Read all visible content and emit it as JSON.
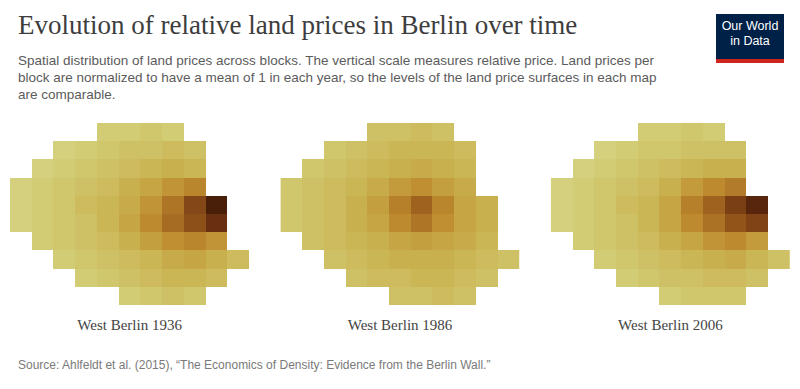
{
  "title": "Evolution of relative land prices in Berlin over time",
  "subtitle": "Spatial distribution of land prices across blocks. The vertical scale measures relative price. Land prices per block are normalized to have a mean of 1 in each year, so the levels of the land price surfaces in each map are comparable.",
  "logo": [
    "Our World",
    "in Data"
  ],
  "source": "Source: Ahlfeldt et al. (2015), “The Economics of Density: Evidence from the Berlin Wall.”",
  "chart_data": [
    {
      "type": "heatmap",
      "title": "West Berlin 1936",
      "tick_labels": false,
      "zlim": [
        0,
        5
      ],
      "cells": [
        [
          null,
          null,
          null,
          null,
          0.6,
          0.6,
          0.7,
          0.6,
          null,
          null,
          null
        ],
        [
          null,
          null,
          0.5,
          0.6,
          0.7,
          0.8,
          0.8,
          0.9,
          0.8,
          null,
          null
        ],
        [
          null,
          0.5,
          0.6,
          0.7,
          0.8,
          0.9,
          1.0,
          1.1,
          1.0,
          null,
          null
        ],
        [
          0.5,
          0.6,
          0.7,
          0.8,
          0.9,
          1.1,
          1.3,
          1.6,
          1.9,
          null,
          null
        ],
        [
          0.5,
          0.6,
          0.7,
          0.9,
          1.0,
          1.2,
          1.6,
          2.2,
          3.2,
          4.5,
          null
        ],
        [
          0.5,
          0.6,
          0.7,
          0.8,
          1.0,
          1.3,
          1.8,
          2.4,
          3.0,
          3.8,
          null
        ],
        [
          null,
          0.6,
          0.7,
          0.8,
          0.9,
          1.1,
          1.4,
          1.7,
          1.9,
          1.6,
          null
        ],
        [
          null,
          null,
          0.6,
          0.7,
          0.8,
          0.9,
          1.0,
          1.2,
          1.3,
          1.1,
          0.9
        ],
        [
          null,
          null,
          null,
          0.6,
          0.7,
          0.8,
          0.9,
          1.0,
          1.0,
          0.9,
          null
        ],
        [
          null,
          null,
          null,
          null,
          null,
          0.6,
          0.7,
          0.8,
          0.7,
          null,
          null
        ]
      ]
    },
    {
      "type": "heatmap",
      "title": "West Berlin 1986",
      "tick_labels": false,
      "zlim": [
        0,
        5
      ],
      "cells": [
        [
          null,
          null,
          null,
          null,
          0.8,
          0.8,
          0.9,
          0.8,
          null,
          null,
          null
        ],
        [
          null,
          null,
          0.7,
          0.8,
          0.9,
          1.0,
          1.0,
          1.0,
          0.9,
          null,
          null
        ],
        [
          null,
          0.7,
          0.8,
          0.9,
          1.0,
          1.1,
          1.2,
          1.1,
          1.0,
          null,
          null
        ],
        [
          0.7,
          0.8,
          0.9,
          1.0,
          1.2,
          1.5,
          1.7,
          1.4,
          1.2,
          null,
          null
        ],
        [
          0.7,
          0.8,
          0.9,
          1.1,
          1.4,
          2.0,
          2.6,
          1.9,
          1.3,
          1.1,
          null
        ],
        [
          0.7,
          0.8,
          0.9,
          1.1,
          1.3,
          1.8,
          2.2,
          1.7,
          1.3,
          1.1,
          null
        ],
        [
          null,
          0.8,
          0.9,
          1.0,
          1.1,
          1.3,
          1.4,
          1.3,
          1.2,
          1.0,
          null
        ],
        [
          null,
          null,
          0.8,
          0.9,
          1.0,
          1.1,
          1.1,
          1.1,
          1.0,
          0.9,
          0.8
        ],
        [
          null,
          null,
          null,
          0.8,
          0.9,
          0.9,
          1.0,
          1.0,
          0.9,
          0.8,
          null
        ],
        [
          null,
          null,
          null,
          null,
          null,
          0.8,
          0.8,
          0.9,
          0.8,
          null,
          null
        ]
      ]
    },
    {
      "type": "heatmap",
      "title": "West Berlin 2006",
      "tick_labels": false,
      "zlim": [
        0,
        5
      ],
      "cells": [
        [
          null,
          null,
          null,
          null,
          0.6,
          0.6,
          0.7,
          0.6,
          null,
          null,
          null
        ],
        [
          null,
          null,
          0.5,
          0.6,
          0.7,
          0.7,
          0.8,
          0.8,
          0.8,
          null,
          null
        ],
        [
          null,
          0.5,
          0.6,
          0.7,
          0.8,
          0.9,
          1.0,
          1.1,
          1.1,
          null,
          null
        ],
        [
          0.5,
          0.6,
          0.7,
          0.8,
          0.9,
          1.1,
          1.5,
          1.8,
          2.1,
          null,
          null
        ],
        [
          0.5,
          0.6,
          0.7,
          0.9,
          1.0,
          1.3,
          2.0,
          2.6,
          3.4,
          4.2,
          null
        ],
        [
          0.5,
          0.6,
          0.7,
          0.8,
          1.0,
          1.3,
          1.8,
          2.3,
          2.9,
          3.3,
          null
        ],
        [
          null,
          0.6,
          0.7,
          0.8,
          0.9,
          1.1,
          1.3,
          1.6,
          1.8,
          1.5,
          null
        ],
        [
          null,
          null,
          0.6,
          0.7,
          0.8,
          0.9,
          1.0,
          1.1,
          1.2,
          1.0,
          0.8
        ],
        [
          null,
          null,
          null,
          0.6,
          0.7,
          0.8,
          0.8,
          0.9,
          0.9,
          0.8,
          null
        ],
        [
          null,
          null,
          null,
          null,
          null,
          0.6,
          0.7,
          0.7,
          0.7,
          null,
          null
        ]
      ]
    }
  ]
}
